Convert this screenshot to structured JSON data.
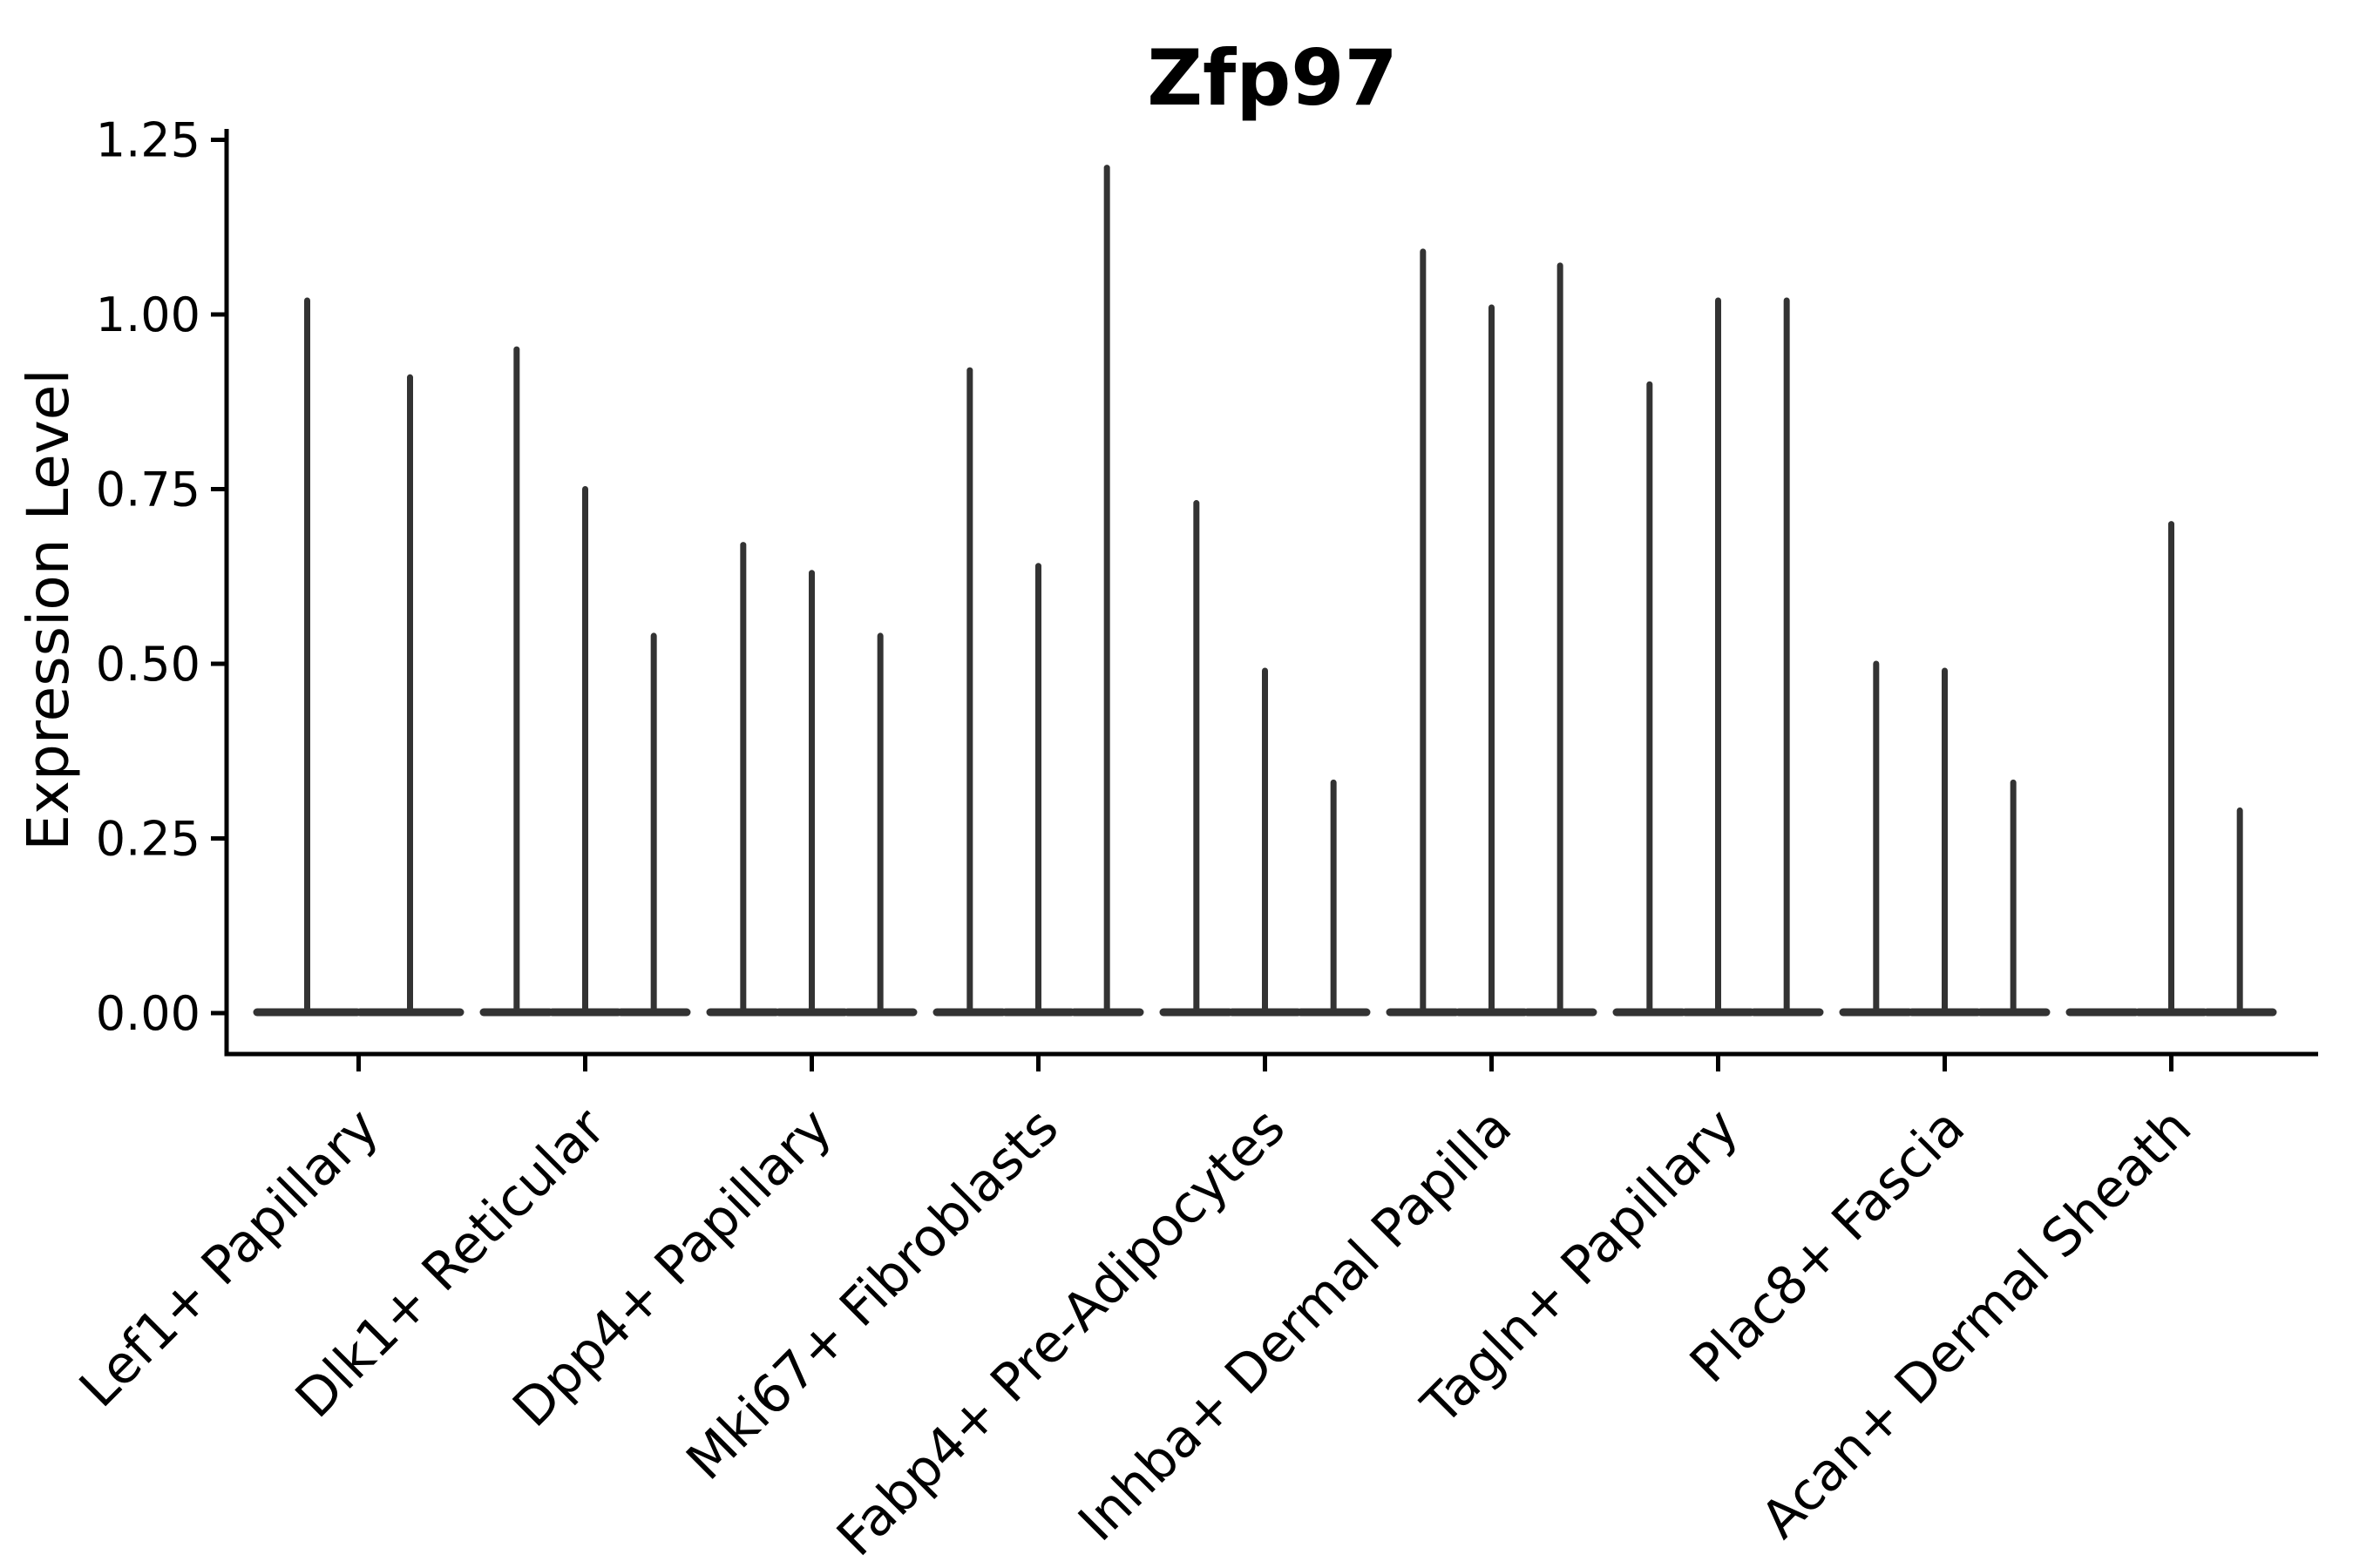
{
  "chart_data": {
    "type": "violin",
    "title": "Zfp97",
    "ylabel": "Expression Level",
    "xlabel": "",
    "ylim": [
      0,
      1.25
    ],
    "yticks": [
      "0.00",
      "0.25",
      "0.50",
      "0.75",
      "1.00",
      "1.25"
    ],
    "ytick_values": [
      0,
      0.25,
      0.5,
      0.75,
      1.0,
      1.25
    ],
    "grid": false,
    "legend": "none",
    "groups": [
      {
        "category": "Lef1+ Papillary",
        "violin_peaks": [
          1.02,
          0.91
        ]
      },
      {
        "category": "Dlk1+ Reticular",
        "violin_peaks": [
          0.95,
          0.75,
          0.54
        ]
      },
      {
        "category": "Dpp4+ Papillary",
        "violin_peaks": [
          0.67,
          0.63,
          0.54
        ]
      },
      {
        "category": "Mki67+ Fibroblasts",
        "violin_peaks": [
          0.92,
          0.64,
          1.21
        ]
      },
      {
        "category": "Fabp4+ Pre-Adipocytes",
        "violin_peaks": [
          0.73,
          0.49,
          0.33
        ]
      },
      {
        "category": "Inhba+ Dermal Papilla",
        "violin_peaks": [
          1.09,
          1.01,
          1.07
        ]
      },
      {
        "category": "Tagln+ Papillary",
        "violin_peaks": [
          0.9,
          1.02,
          1.02
        ]
      },
      {
        "category": "Plac8+ Fascia",
        "violin_peaks": [
          0.5,
          0.49,
          0.33
        ]
      },
      {
        "category": "Acan+ Dermal Sheath",
        "violin_peaks": [
          0.0,
          0.7,
          0.29
        ]
      }
    ],
    "colors": {
      "violin": "#333333",
      "axis": "#000000",
      "text": "#000000",
      "background": "#ffffff"
    }
  }
}
